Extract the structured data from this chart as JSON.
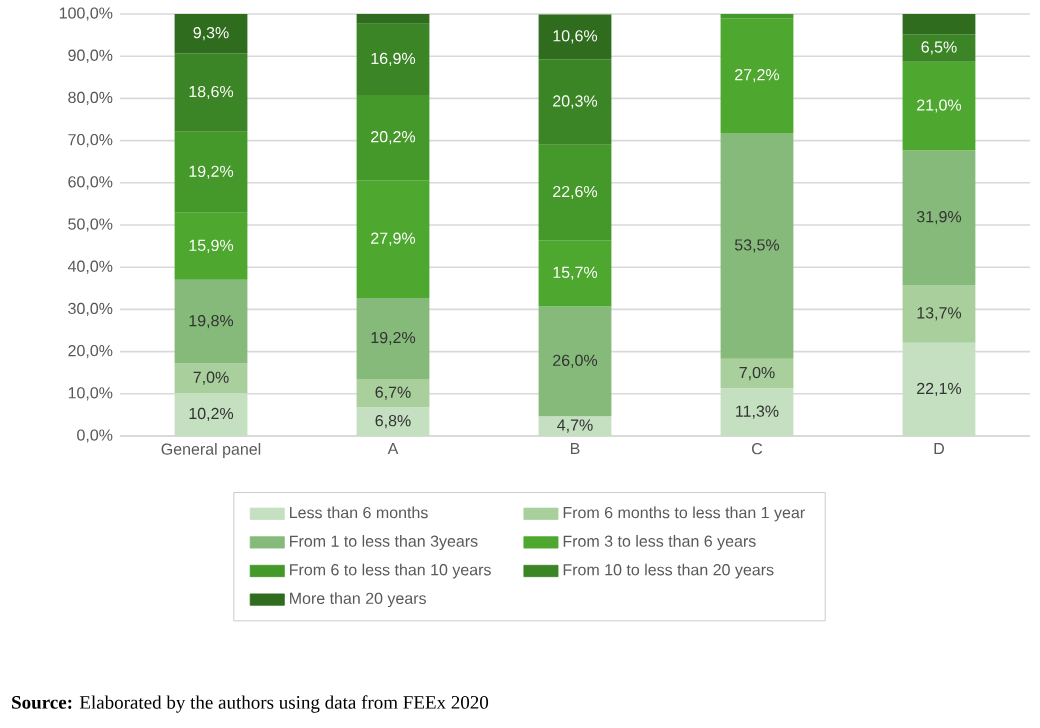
{
  "chart_data": {
    "type": "bar",
    "stacked": true,
    "categories": [
      "General panel",
      "A",
      "B",
      "C",
      "D"
    ],
    "series": [
      {
        "name": "Less than 6 months",
        "color": "#c5e0c0",
        "values": [
          10.2,
          6.8,
          4.7,
          11.3,
          22.1
        ],
        "value_labels": [
          "10,2%",
          "6,8%",
          "4,7%",
          "11,3%",
          "22,1%"
        ]
      },
      {
        "name": "From 6 months to less than 1 year",
        "color": "#a9d09c",
        "values": [
          7.0,
          6.7,
          null,
          7.0,
          13.7
        ],
        "value_labels": [
          "7,0%",
          "6,7%",
          null,
          "7,0%",
          "13,7%"
        ]
      },
      {
        "name": "From 1 to less than 3years",
        "color": "#86ba7a",
        "values": [
          19.8,
          19.2,
          26.0,
          53.5,
          31.9
        ],
        "value_labels": [
          "19,8%",
          "19,2%",
          "26,0%",
          "53,5%",
          "31,9%"
        ]
      },
      {
        "name": "From 3 to less than 6 years",
        "color": "#4ea72e",
        "values": [
          15.9,
          27.9,
          15.7,
          27.2,
          21.0
        ],
        "value_labels": [
          "15,9%",
          "27,9%",
          "15,7%",
          "27,2%",
          "21,0%"
        ]
      },
      {
        "name": "From 6 to less than 10 years",
        "color": "#45982a",
        "values": [
          19.2,
          20.2,
          22.6,
          1.0,
          null
        ],
        "value_labels": [
          "19,2%",
          "20,2%",
          "22,6%",
          null,
          null
        ]
      },
      {
        "name": "From 10 to less than 20 years",
        "color": "#3c8526",
        "values": [
          18.6,
          16.9,
          20.3,
          null,
          6.5
        ],
        "value_labels": [
          "18,6%",
          "16,9%",
          "20,3%",
          null,
          "6,5%"
        ]
      },
      {
        "name": "More than 20 years",
        "color": "#2f6c1e",
        "values": [
          9.3,
          2.3,
          10.6,
          null,
          4.8
        ],
        "value_labels": [
          "9,3%",
          null,
          "10,6%",
          null,
          null
        ]
      }
    ],
    "ylim": [
      0,
      100
    ],
    "yticks": [
      {
        "value": 0,
        "label": "0,0%"
      },
      {
        "value": 10,
        "label": "10,0%"
      },
      {
        "value": 20,
        "label": "20,0%"
      },
      {
        "value": 30,
        "label": "30,0%"
      },
      {
        "value": 40,
        "label": "40,0%"
      },
      {
        "value": 50,
        "label": "50,0%"
      },
      {
        "value": 60,
        "label": "60,0%"
      },
      {
        "value": 70,
        "label": "70,0%"
      },
      {
        "value": 80,
        "label": "80,0%"
      },
      {
        "value": 90,
        "label": "90,0%"
      },
      {
        "value": 100,
        "label": "100,0%"
      }
    ],
    "grid": "y",
    "legend": "bottom",
    "annotations": [
      "**Source:** Elaborated by the authors using data from FEEx 2020"
    ]
  }
}
